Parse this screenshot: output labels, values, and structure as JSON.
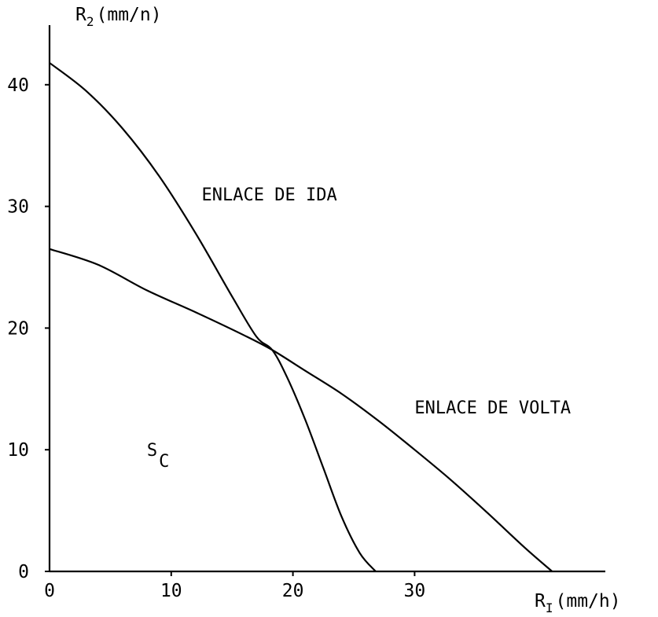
{
  "chart_data": {
    "type": "line",
    "title": "",
    "xlabel": "R",
    "xlabel_subscript": "I",
    "xlabel_unit": "(mm/h)",
    "ylabel": "R",
    "ylabel_subscript": "2",
    "ylabel_unit": "(mm/n)",
    "xlim": [
      0,
      43
    ],
    "ylim": [
      0,
      45
    ],
    "xticks": [
      0,
      10,
      20,
      30
    ],
    "yticks": [
      0,
      10,
      20,
      30,
      40
    ],
    "grid": false,
    "series": [
      {
        "name": "ENLACE DE IDA",
        "x": [
          0,
          3,
          6,
          9,
          12,
          15,
          17,
          18.3,
          19.5,
          21,
          22.5,
          24,
          25.5,
          26.8
        ],
        "y": [
          41.8,
          39.5,
          36.4,
          32.5,
          27.8,
          22.6,
          19.3,
          18.2,
          16.0,
          12.5,
          8.5,
          4.5,
          1.5,
          0
        ]
      },
      {
        "name": "ENLACE DE VOLTA",
        "x": [
          0,
          4,
          8,
          12,
          16,
          18.3,
          21,
          24,
          27,
          30,
          33,
          36,
          39,
          41.3
        ],
        "y": [
          26.5,
          25.2,
          23.1,
          21.3,
          19.4,
          18.2,
          16.5,
          14.6,
          12.4,
          10.0,
          7.5,
          4.8,
          2.0,
          0
        ]
      }
    ],
    "annotations": [
      {
        "text": "ENLACE DE IDA",
        "x": 12.5,
        "y": 30.5
      },
      {
        "text": "ENLACE DE VOLTA",
        "x": 30,
        "y": 13
      },
      {
        "text": "S",
        "subscript": "C",
        "x": 8,
        "y": 9.5
      }
    ]
  }
}
